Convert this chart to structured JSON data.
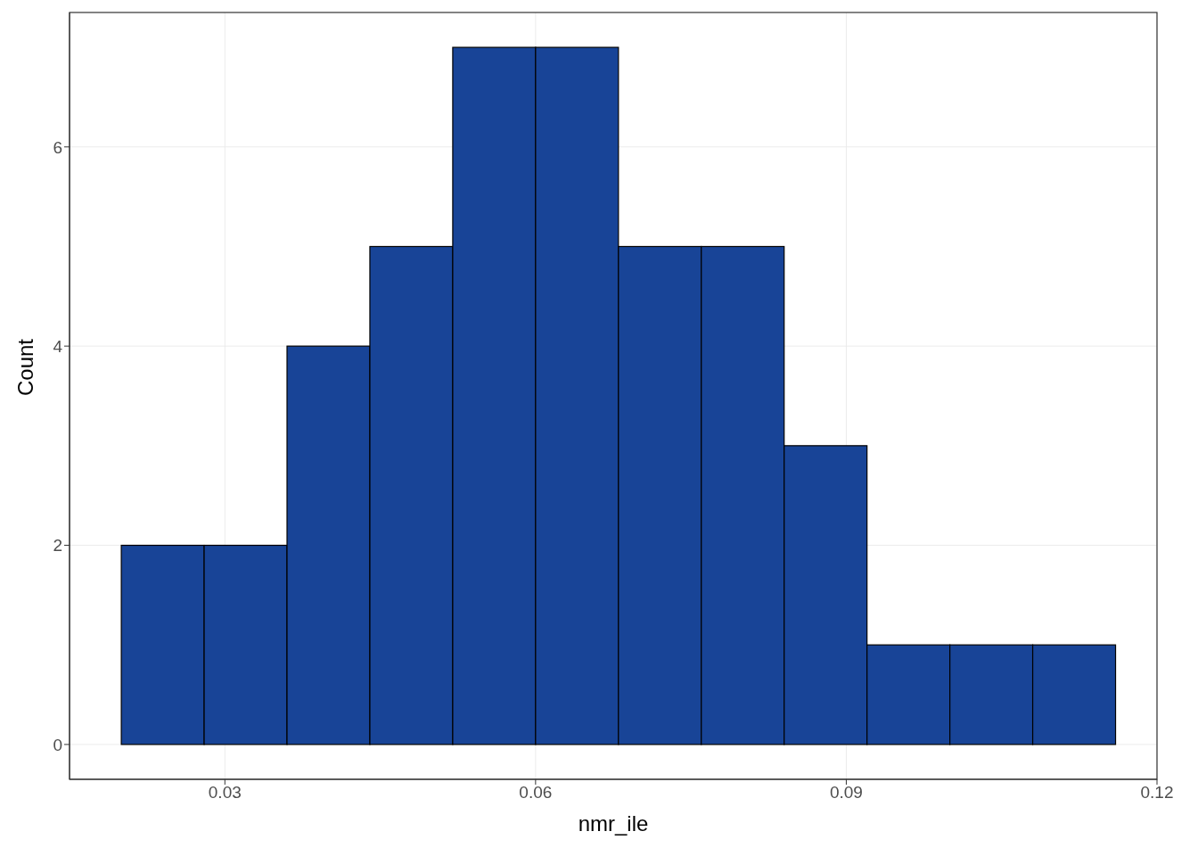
{
  "chart_data": {
    "type": "histogram",
    "xlabel": "nmr_ile",
    "ylabel": "Count",
    "bins": [
      0.02,
      0.028,
      0.036,
      0.044,
      0.052,
      0.06,
      0.068,
      0.076,
      0.084,
      0.092,
      0.1,
      0.108,
      0.116
    ],
    "values": [
      2,
      2,
      4,
      5,
      7,
      7,
      5,
      5,
      3,
      1,
      1,
      1
    ],
    "color": "#184497",
    "xlim": [
      0.015,
      0.12
    ],
    "xticks": [
      0.03,
      0.06,
      0.09,
      0.12
    ],
    "ylim": [
      -0.35,
      7.35
    ],
    "yticks": [
      0,
      2,
      4,
      6
    ],
    "grid": true
  }
}
